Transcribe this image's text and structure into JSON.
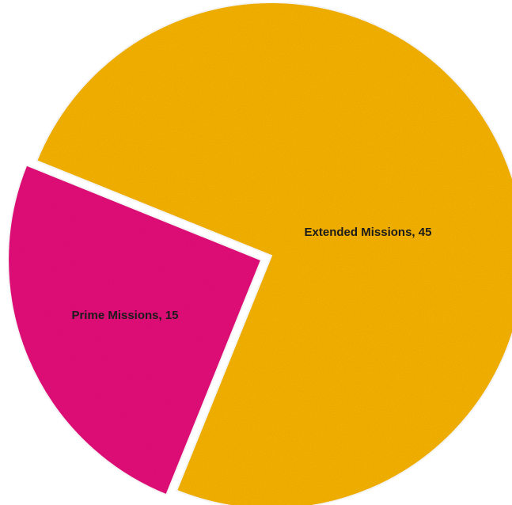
{
  "chart_data": {
    "type": "pie",
    "title": "",
    "categories": [
      "Extended Missions",
      "Prime Missions"
    ],
    "values": [
      45,
      15
    ],
    "colors": [
      "#f8b40c",
      "#e5137a"
    ],
    "exploded": [
      false,
      true
    ],
    "slice_labels": [
      "Extended Missions, 45",
      "Prime Missions, 15"
    ],
    "legend": "none"
  }
}
